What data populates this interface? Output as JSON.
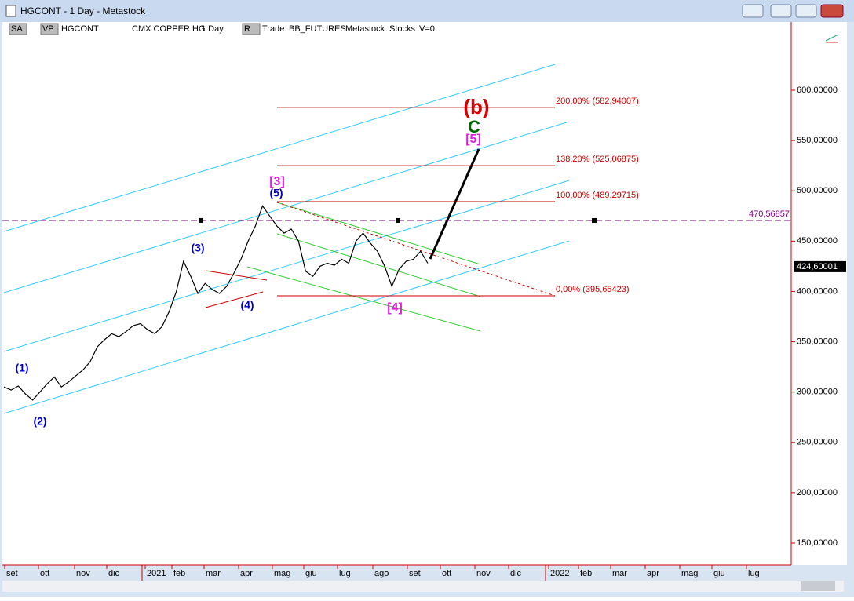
{
  "window": {
    "title": "HGCONT - 1 Day - Metastock"
  },
  "toolbar": {
    "items": [
      "SA",
      "VP",
      "HGCONT",
      "CMX COPPER HG",
      "1 Day",
      "R",
      "Trade",
      "BB_FUTURES",
      "Metastock",
      "Stocks",
      "V=0"
    ]
  },
  "chart": {
    "prices": [
      305,
      302,
      306,
      298,
      292,
      300,
      308,
      315,
      305,
      310,
      316,
      322,
      330,
      345,
      352,
      358,
      355,
      360,
      366,
      368,
      362,
      358,
      365,
      380,
      400,
      430,
      415,
      398,
      408,
      402,
      398,
      405,
      418,
      432,
      450,
      465,
      485,
      475,
      465,
      458,
      462,
      450,
      420,
      415,
      425,
      428,
      426,
      432,
      428,
      450,
      458,
      448,
      440,
      425,
      405,
      422,
      430,
      432,
      440,
      428
    ],
    "yticks": [
      {
        "value": 600,
        "label": "600,00000"
      },
      {
        "value": 550,
        "label": "550,00000"
      },
      {
        "value": 500,
        "label": "500,00000"
      },
      {
        "value": 450,
        "label": "450,00000"
      },
      {
        "value": 400,
        "label": "400,00000"
      },
      {
        "value": 350,
        "label": "350,00000"
      },
      {
        "value": 300,
        "label": "300,00000"
      },
      {
        "value": 250,
        "label": "250,00000"
      },
      {
        "value": 200,
        "label": "200,00000"
      },
      {
        "value": 150,
        "label": "150,00000"
      }
    ],
    "x_labels": [
      "set",
      "ott",
      "nov",
      "dic",
      "2021",
      "feb",
      "mar",
      "apr",
      "mag",
      "giu",
      "lug",
      "ago",
      "set",
      "ott",
      "nov",
      "dic",
      "2022",
      "feb",
      "mar",
      "apr",
      "mag",
      "giu",
      "lug"
    ],
    "fib_levels": [
      {
        "value": 582.94007,
        "label": "200,00% (582,94007)"
      },
      {
        "value": 525.06875,
        "label": "138,20% (525,06875)"
      },
      {
        "value": 489.29715,
        "label": "100,00% (489,29715)"
      },
      {
        "value": 395.65423,
        "label": "0,00% (395,65423)"
      }
    ],
    "horizontal_line": {
      "value": 470.56857,
      "label": "470,56857"
    },
    "last_price": {
      "value": 424.60001,
      "label": "424,60001"
    },
    "annotations": [
      "(1)",
      "(2)",
      "(3)",
      "(4)",
      "(5)",
      "[3]",
      "[4]",
      "[5]",
      "C",
      "(b)"
    ]
  }
}
